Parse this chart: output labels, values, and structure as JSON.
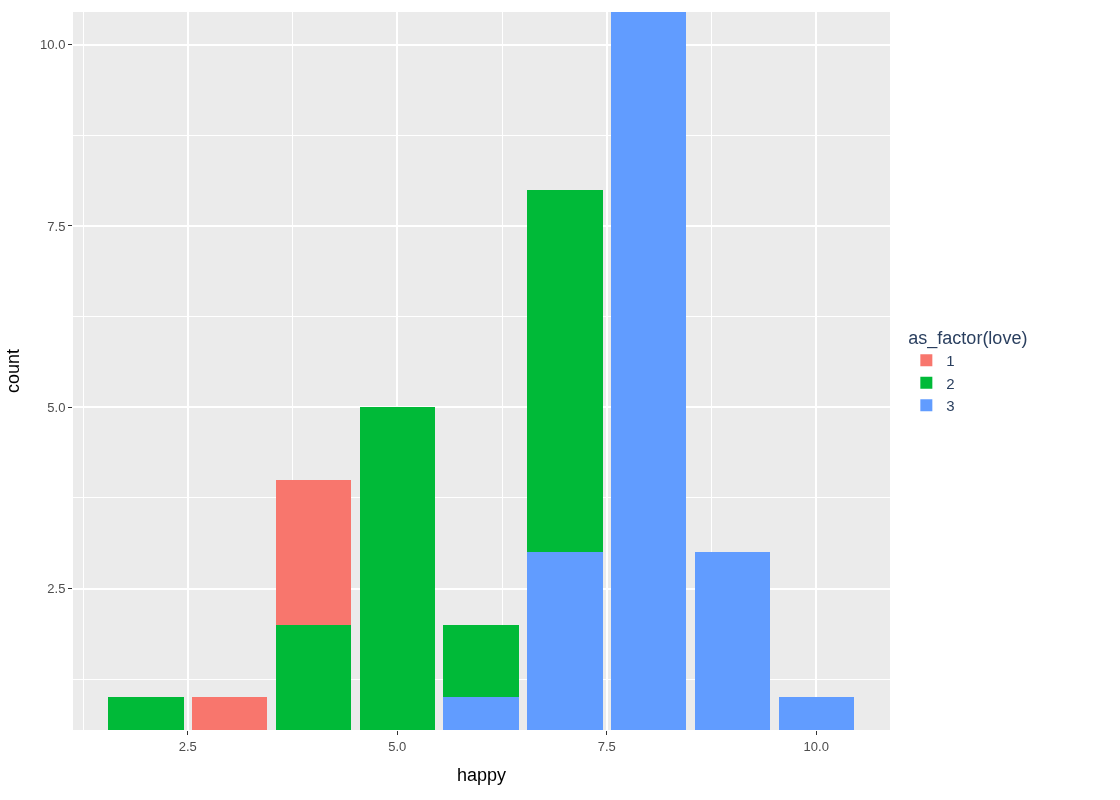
{
  "chart_data": {
    "type": "bar",
    "stacked": true,
    "xlabel": "happy",
    "ylabel": "count",
    "legend_title": "as_factor(love)",
    "legend": "right",
    "x": [
      2,
      3,
      4,
      5,
      6,
      7,
      8,
      9,
      10
    ],
    "series": [
      {
        "name": "3",
        "color": "#619cff",
        "values": [
          null,
          null,
          null,
          null,
          1,
          3,
          10.45,
          3,
          1
        ]
      },
      {
        "name": "2",
        "color": "#00ba38",
        "values": [
          1,
          null,
          2,
          5,
          1,
          5,
          null,
          null,
          null
        ]
      },
      {
        "name": "1",
        "color": "#f8766d",
        "values": [
          null,
          1,
          2,
          null,
          null,
          null,
          null,
          null,
          null
        ]
      }
    ],
    "xlim": [
      1.13,
      10.88
    ],
    "ylim": [
      0.55,
      10.45
    ],
    "xticks": [
      {
        "value": 2.5,
        "label": "2.5"
      },
      {
        "value": 5,
        "label": "5.0"
      },
      {
        "value": 7.5,
        "label": "7.5"
      },
      {
        "value": 10,
        "label": "10.0"
      }
    ],
    "yticks": [
      {
        "value": 2.5,
        "label": "2.5"
      },
      {
        "value": 5,
        "label": "5.0"
      },
      {
        "value": 7.5,
        "label": "7.5"
      },
      {
        "value": 10,
        "label": "10.0"
      }
    ],
    "grid": true
  }
}
